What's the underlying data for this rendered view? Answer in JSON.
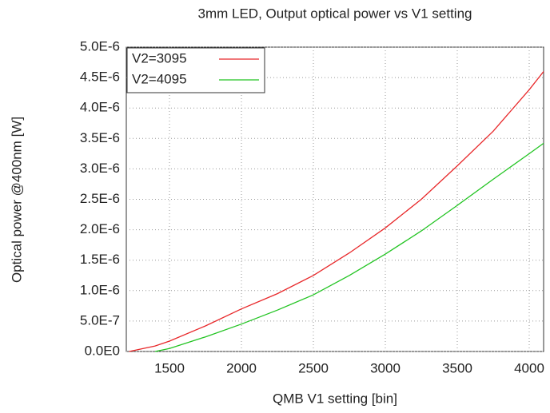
{
  "chart_data": {
    "type": "line",
    "title": "3mm LED, Output optical power vs V1 setting",
    "x_label": "QMB V1 setting [bin]",
    "y_label": "Optical power @400nm [W]",
    "x": [
      1220,
      1400,
      1500,
      1750,
      2000,
      2250,
      2500,
      2750,
      3000,
      3250,
      3500,
      3750,
      4000,
      4100
    ],
    "series": [
      {
        "name": "V2=3095",
        "color": "#e8282a",
        "values": [
          0,
          9e-08,
          1.7e-07,
          4.2e-07,
          7e-07,
          9.5e-07,
          1.25e-06,
          1.62e-06,
          2.03e-06,
          2.5e-06,
          3.05e-06,
          3.62e-06,
          4.3e-06,
          4.6e-06
        ]
      },
      {
        "name": "V2=4095",
        "color": "#22c422",
        "values": [
          null,
          0,
          5e-08,
          2.4e-07,
          4.5e-07,
          6.8e-07,
          9.3e-07,
          1.25e-06,
          1.6e-06,
          1.98e-06,
          2.4e-06,
          2.83e-06,
          3.25e-06,
          3.42e-06
        ]
      }
    ],
    "xlim": [
      1200,
      4100
    ],
    "xticks": [
      1500,
      2000,
      2500,
      3000,
      3500,
      4000
    ],
    "ylim": [
      0,
      5e-06
    ],
    "yticks": [
      {
        "value": 0,
        "label": "0.0E0"
      },
      {
        "value": 5e-07,
        "label": "5.0E-7"
      },
      {
        "value": 1e-06,
        "label": "1.0E-6"
      },
      {
        "value": 1.5e-06,
        "label": "1.5E-6"
      },
      {
        "value": 2e-06,
        "label": "2.0E-6"
      },
      {
        "value": 2.5e-06,
        "label": "2.5E-6"
      },
      {
        "value": 3e-06,
        "label": "3.0E-6"
      },
      {
        "value": 3.5e-06,
        "label": "3.5E-6"
      },
      {
        "value": 4e-06,
        "label": "4.0E-6"
      },
      {
        "value": 4.5e-06,
        "label": "4.5E-6"
      },
      {
        "value": 5e-06,
        "label": "5.0E-6"
      }
    ],
    "grid": true,
    "legend": "upper-left"
  }
}
